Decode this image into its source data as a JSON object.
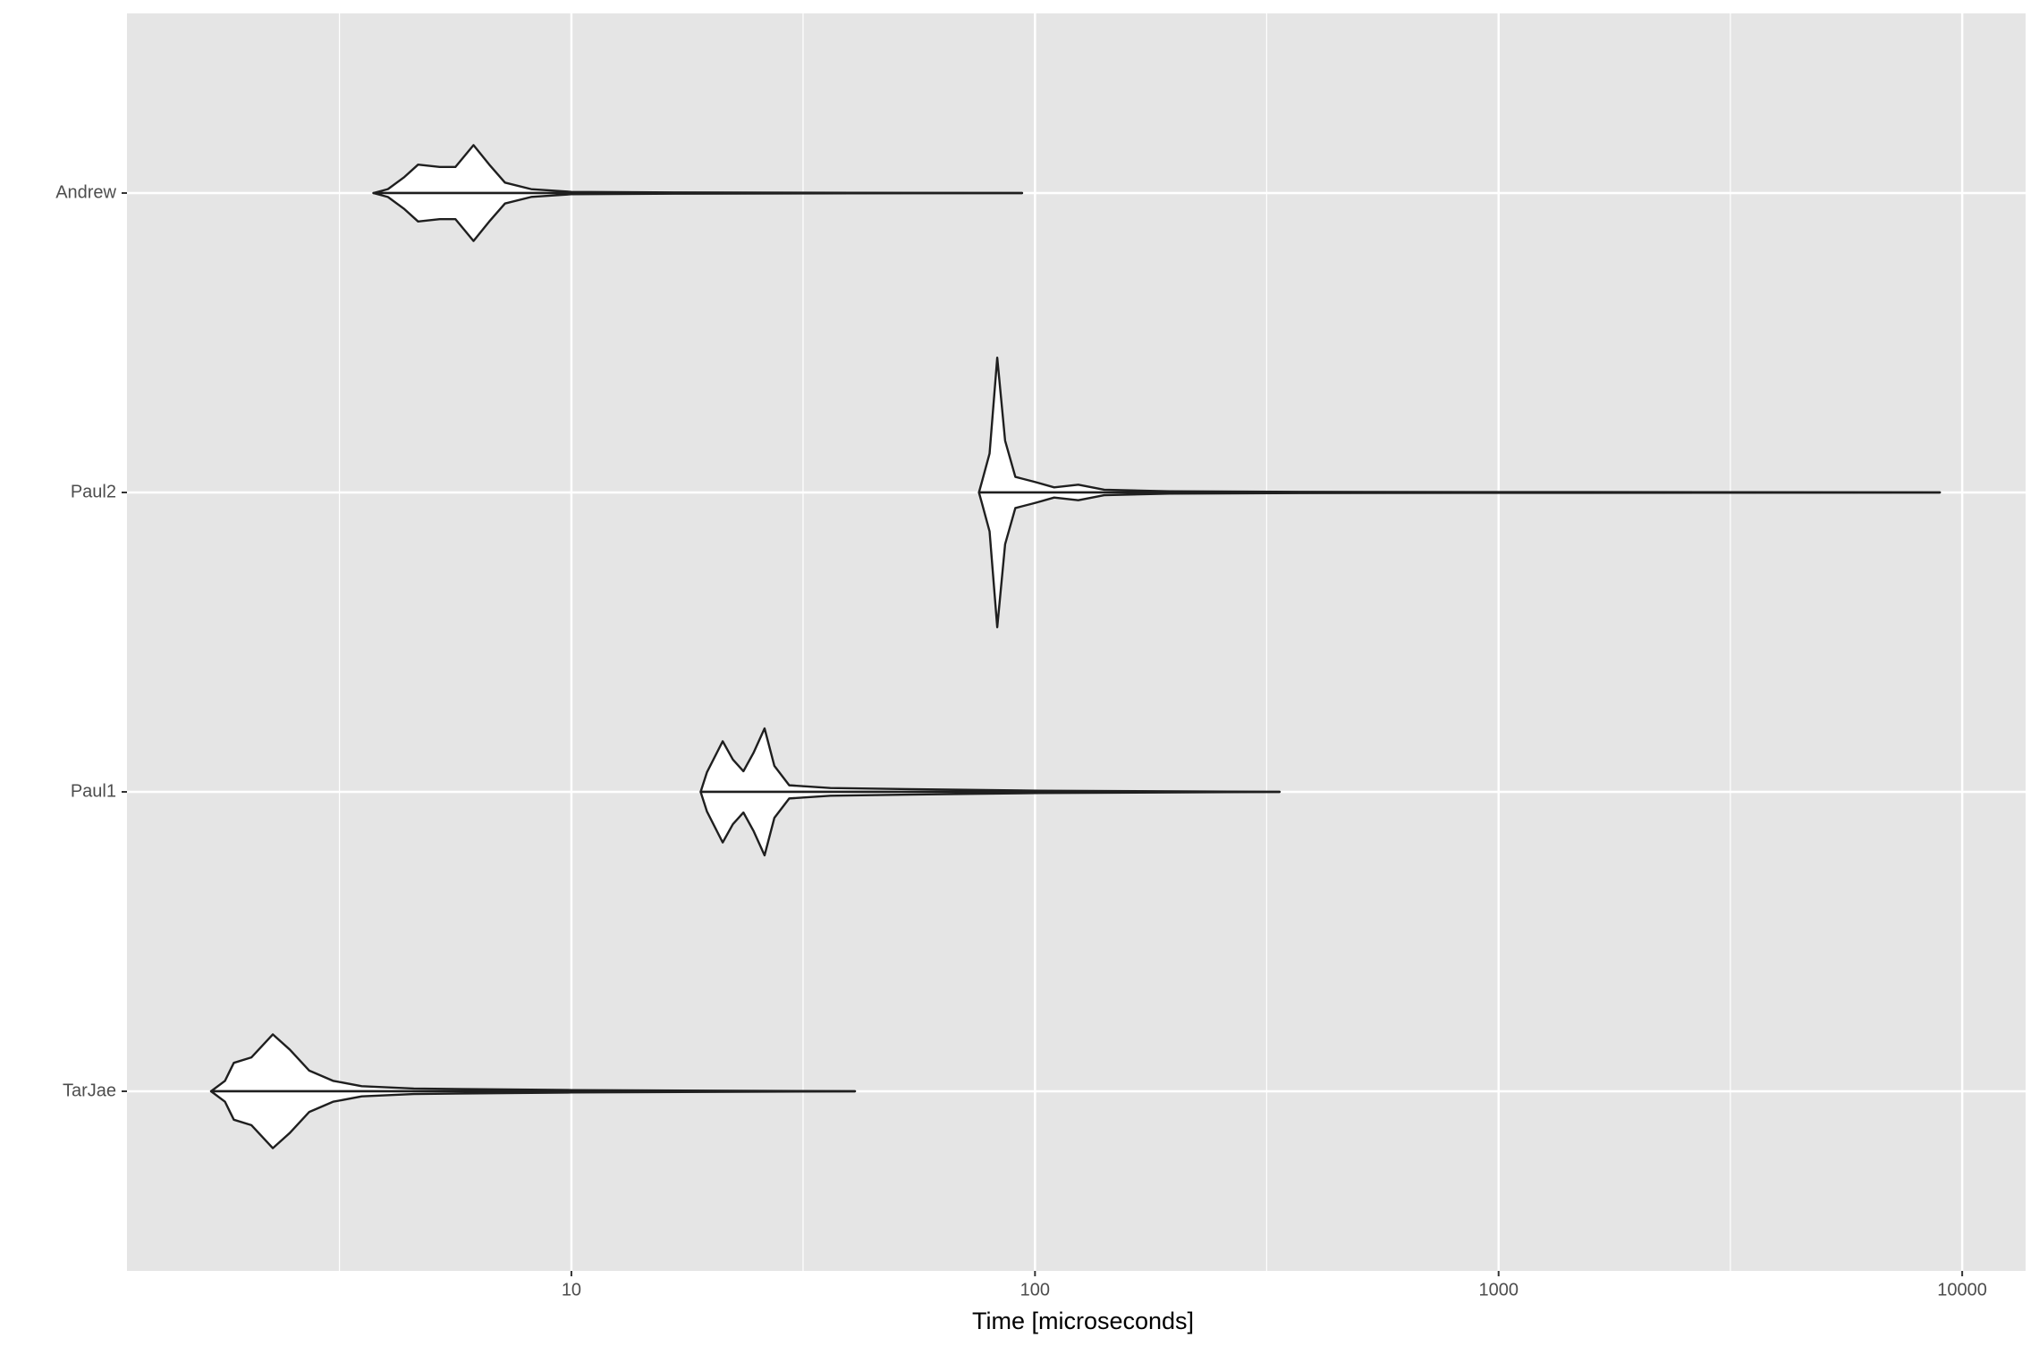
{
  "chart_data": {
    "type": "violin",
    "x_label": "Time [microseconds]",
    "x_log": true,
    "categories": [
      "Andrew",
      "Paul2",
      "Paul1",
      "TarJae"
    ],
    "xlim": [
      1.1,
      13700
    ],
    "xticks": [
      10,
      100,
      1000,
      10000
    ],
    "x_minor_ticks": [
      3.16,
      31.6,
      316,
      3162
    ],
    "grid": true,
    "fill": "#ffffff",
    "line_color": "#1f1f1f",
    "background": "#e5e5e5",
    "series": [
      {
        "x": [
          3.74,
          4.02,
          4.35,
          4.67,
          5.2,
          5.62,
          6.15,
          6.65,
          7.19,
          8.19,
          10,
          16.7,
          93.8
        ],
        "width": [
          0,
          0.013,
          0.052,
          0.095,
          0.087,
          0.087,
          0.16,
          0.095,
          0.035,
          0.013,
          0.004,
          0.002,
          0
        ]
      },
      {
        "x": [
          75.7,
          76.8,
          79.8,
          82.9,
          86.2,
          90.7,
          100,
          110,
          124,
          141,
          195,
          371,
          8950
        ],
        "width": [
          0,
          0.035,
          0.13,
          0.45,
          0.173,
          0.052,
          0.035,
          0.017,
          0.026,
          0.009,
          0.004,
          0.002,
          0
        ]
      },
      {
        "x": [
          19.0,
          19.6,
          21.2,
          22.3,
          23.5,
          24.7,
          26.1,
          27.4,
          29.5,
          36.2,
          53.4,
          102,
          337
        ],
        "width": [
          0,
          0.065,
          0.169,
          0.108,
          0.069,
          0.13,
          0.212,
          0.087,
          0.022,
          0.013,
          0.009,
          0.004,
          0
        ]
      },
      {
        "x": [
          1.67,
          1.79,
          1.87,
          2.04,
          2.27,
          2.47,
          2.72,
          3.06,
          3.53,
          4.57,
          10,
          40.9
        ],
        "width": [
          0,
          0.035,
          0.095,
          0.113,
          0.19,
          0.139,
          0.069,
          0.035,
          0.017,
          0.009,
          0.004,
          0
        ]
      }
    ]
  }
}
